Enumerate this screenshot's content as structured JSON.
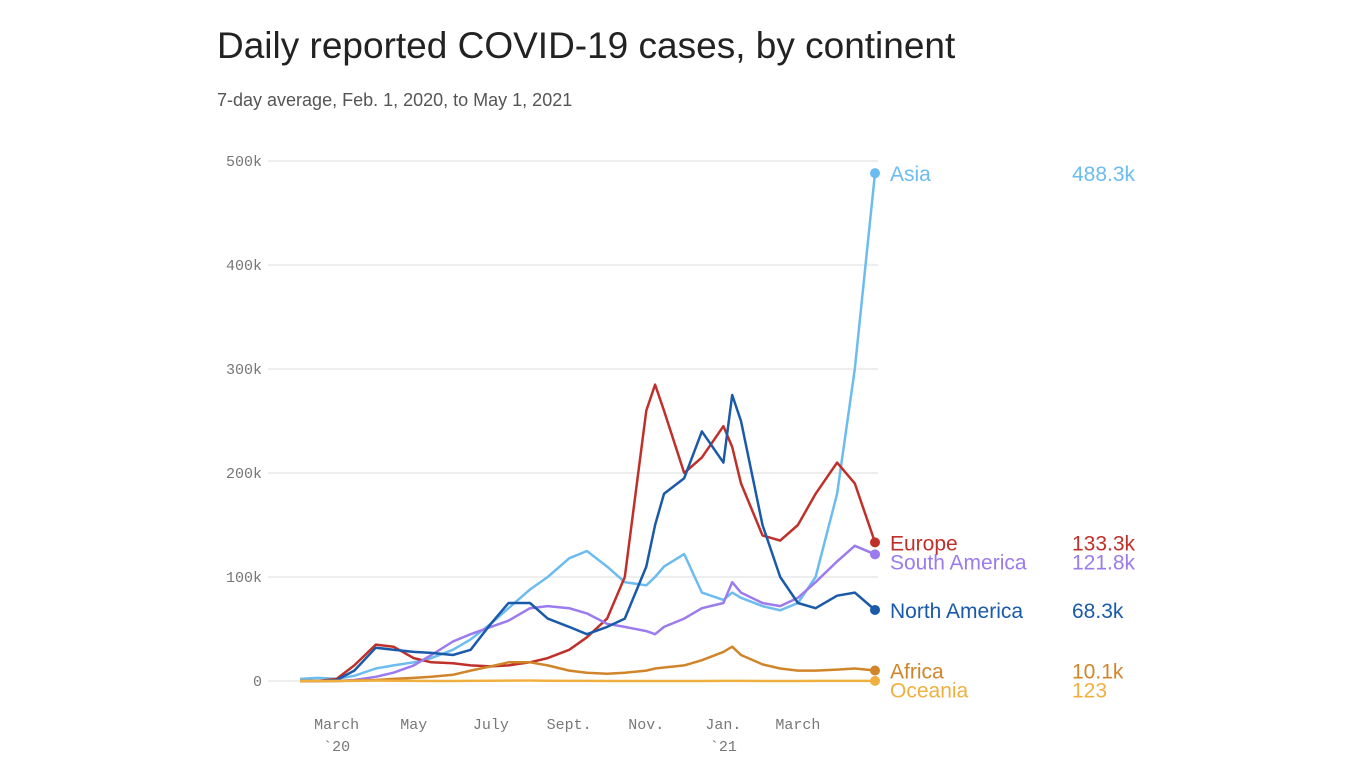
{
  "chart_data": {
    "type": "line",
    "title": "Daily reported COVID-19 cases, by continent",
    "subtitle": "7-day average, Feb. 1, 2020, to May 1, 2021",
    "x": [
      "2020-02-01",
      "2020-02-15",
      "2020-03-01",
      "2020-03-15",
      "2020-04-01",
      "2020-04-15",
      "2020-05-01",
      "2020-05-15",
      "2020-06-01",
      "2020-06-15",
      "2020-07-01",
      "2020-07-15",
      "2020-08-01",
      "2020-08-15",
      "2020-09-01",
      "2020-09-15",
      "2020-10-01",
      "2020-10-15",
      "2020-11-01",
      "2020-11-08",
      "2020-11-15",
      "2020-12-01",
      "2020-12-15",
      "2021-01-01",
      "2021-01-08",
      "2021-01-15",
      "2021-02-01",
      "2021-02-15",
      "2021-03-01",
      "2021-03-15",
      "2021-04-01",
      "2021-04-15",
      "2021-05-01"
    ],
    "xlim": [
      "2020-02-01",
      "2021-05-01"
    ],
    "xticks": [
      {
        "value": "2020-03-01",
        "label": "March",
        "year": "`20"
      },
      {
        "value": "2020-05-01",
        "label": "May"
      },
      {
        "value": "2020-07-01",
        "label": "July"
      },
      {
        "value": "2020-09-01",
        "label": "Sept."
      },
      {
        "value": "2020-11-01",
        "label": "Nov."
      },
      {
        "value": "2021-01-01",
        "label": "Jan.",
        "year": "`21"
      },
      {
        "value": "2021-03-01",
        "label": "March"
      }
    ],
    "ylim": [
      0,
      500
    ],
    "yticks": [
      0,
      {
        "value": 100,
        "label": "100k"
      },
      {
        "value": 200,
        "label": "200k"
      },
      {
        "value": 300,
        "label": "300k"
      },
      {
        "value": 400,
        "label": "400k"
      },
      {
        "value": 500,
        "label": "500k"
      }
    ],
    "grid": true,
    "series": [
      {
        "name": "Asia",
        "color": "#6cbcf0",
        "value_label": "488.3k",
        "values": [
          2,
          3,
          2,
          5,
          12,
          15,
          18,
          22,
          30,
          40,
          55,
          70,
          88,
          100,
          118,
          125,
          110,
          95,
          92,
          100,
          110,
          122,
          85,
          78,
          85,
          80,
          72,
          68,
          75,
          100,
          180,
          300,
          488.3
        ]
      },
      {
        "name": "Europe",
        "color": "#c0302a",
        "value_label": "133.3k",
        "values": [
          0,
          0,
          2,
          15,
          35,
          33,
          22,
          18,
          17,
          15,
          14,
          15,
          18,
          22,
          30,
          42,
          60,
          100,
          260,
          285,
          260,
          200,
          215,
          245,
          225,
          190,
          140,
          135,
          150,
          180,
          210,
          190,
          133.3
        ]
      },
      {
        "name": "South America",
        "color": "#9b7bed",
        "value_label": "121.8k",
        "values": [
          0,
          0,
          0,
          1,
          4,
          8,
          15,
          25,
          38,
          45,
          52,
          58,
          70,
          72,
          70,
          65,
          55,
          52,
          48,
          45,
          52,
          60,
          70,
          75,
          95,
          85,
          75,
          72,
          80,
          95,
          115,
          130,
          121.8
        ]
      },
      {
        "name": "North America",
        "color": "#1a5aa8",
        "value_label": "68.3k",
        "values": [
          0,
          0,
          1,
          10,
          32,
          30,
          28,
          27,
          25,
          30,
          55,
          75,
          75,
          60,
          52,
          45,
          52,
          60,
          110,
          150,
          180,
          195,
          240,
          210,
          275,
          250,
          150,
          100,
          75,
          70,
          82,
          85,
          68.3
        ]
      },
      {
        "name": "Africa",
        "color": "#d0852a",
        "value_label": "10.1k",
        "values": [
          0,
          0,
          0,
          0.5,
          1,
          2,
          3,
          4,
          6,
          10,
          14,
          18,
          18,
          15,
          10,
          8,
          7,
          8,
          10,
          12,
          13,
          15,
          20,
          28,
          33,
          25,
          16,
          12,
          10,
          10,
          11,
          12,
          10.1
        ]
      },
      {
        "name": "Oceania",
        "color": "#f0b040",
        "value_label": "123",
        "values": [
          0,
          0,
          0,
          0.1,
          0.4,
          0.2,
          0.05,
          0.02,
          0.02,
          0.05,
          0.2,
          0.4,
          0.5,
          0.3,
          0.1,
          0.05,
          0.03,
          0.03,
          0.03,
          0.02,
          0.02,
          0.02,
          0.03,
          0.05,
          0.05,
          0.05,
          0.03,
          0.03,
          0.03,
          0.05,
          0.1,
          0.1,
          0.123
        ]
      }
    ]
  }
}
